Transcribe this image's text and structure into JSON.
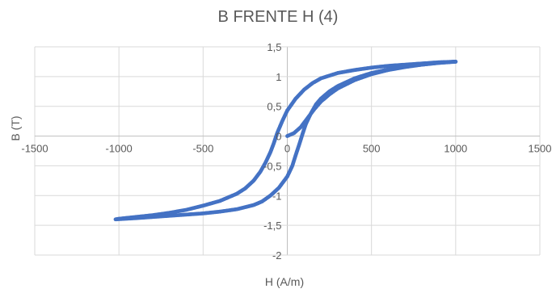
{
  "chart_data": {
    "type": "scatter",
    "title": "B FRENTE H (4)",
    "xlabel": "H (A/m)",
    "ylabel": "B (T)",
    "xlim": [
      -1500,
      1500
    ],
    "ylim": [
      -2,
      1.5
    ],
    "x_ticks": [
      -1500,
      -1000,
      -500,
      0,
      500,
      1000,
      1500
    ],
    "y_ticks": [
      -2,
      -1.5,
      -1,
      -0.5,
      0,
      0.5,
      1,
      1.5
    ],
    "x_tick_labels": [
      "-1500",
      "-1000",
      "-500",
      "0",
      "500",
      "1000",
      "1500"
    ],
    "y_tick_labels": [
      "-2",
      "-1,5",
      "-1",
      "-0,5",
      "0",
      "0,5",
      "1",
      "1,5"
    ],
    "grid": true,
    "series": [
      {
        "color": "#4472c4",
        "points": [
          [
            0,
            0
          ],
          [
            40,
            0.05
          ],
          [
            80,
            0.15
          ],
          [
            120,
            0.3
          ],
          [
            160,
            0.45
          ],
          [
            200,
            0.58
          ],
          [
            250,
            0.7
          ],
          [
            300,
            0.8
          ],
          [
            400,
            0.94
          ],
          [
            500,
            1.04
          ],
          [
            600,
            1.11
          ],
          [
            700,
            1.16
          ],
          [
            800,
            1.2
          ],
          [
            900,
            1.23
          ],
          [
            1000,
            1.25
          ],
          [
            900,
            1.24
          ],
          [
            800,
            1.22
          ],
          [
            700,
            1.2
          ],
          [
            600,
            1.18
          ],
          [
            500,
            1.15
          ],
          [
            400,
            1.11
          ],
          [
            300,
            1.06
          ],
          [
            200,
            0.97
          ],
          [
            150,
            0.89
          ],
          [
            100,
            0.78
          ],
          [
            50,
            0.63
          ],
          [
            0,
            0.43
          ],
          [
            -30,
            0.25
          ],
          [
            -60,
            0.05
          ],
          [
            -80,
            -0.12
          ],
          [
            -100,
            -0.27
          ],
          [
            -130,
            -0.45
          ],
          [
            -160,
            -0.6
          ],
          [
            -200,
            -0.75
          ],
          [
            -250,
            -0.88
          ],
          [
            -300,
            -0.97
          ],
          [
            -400,
            -1.09
          ],
          [
            -500,
            -1.17
          ],
          [
            -600,
            -1.24
          ],
          [
            -700,
            -1.29
          ],
          [
            -800,
            -1.33
          ],
          [
            -900,
            -1.36
          ],
          [
            -1000,
            -1.39
          ],
          [
            -1020,
            -1.4
          ],
          [
            -900,
            -1.38
          ],
          [
            -800,
            -1.36
          ],
          [
            -700,
            -1.34
          ],
          [
            -600,
            -1.32
          ],
          [
            -500,
            -1.3
          ],
          [
            -400,
            -1.27
          ],
          [
            -300,
            -1.23
          ],
          [
            -200,
            -1.16
          ],
          [
            -150,
            -1.1
          ],
          [
            -100,
            -1.0
          ],
          [
            -50,
            -0.87
          ],
          [
            0,
            -0.68
          ],
          [
            30,
            -0.5
          ],
          [
            50,
            -0.32
          ],
          [
            70,
            -0.15
          ],
          [
            90,
            0.03
          ],
          [
            110,
            0.2
          ],
          [
            140,
            0.38
          ],
          [
            170,
            0.53
          ],
          [
            200,
            0.63
          ],
          [
            250,
            0.75
          ],
          [
            300,
            0.84
          ],
          [
            400,
            0.97
          ],
          [
            500,
            1.06
          ],
          [
            600,
            1.12
          ],
          [
            700,
            1.17
          ],
          [
            800,
            1.2
          ],
          [
            900,
            1.23
          ],
          [
            1000,
            1.25
          ]
        ]
      }
    ]
  }
}
